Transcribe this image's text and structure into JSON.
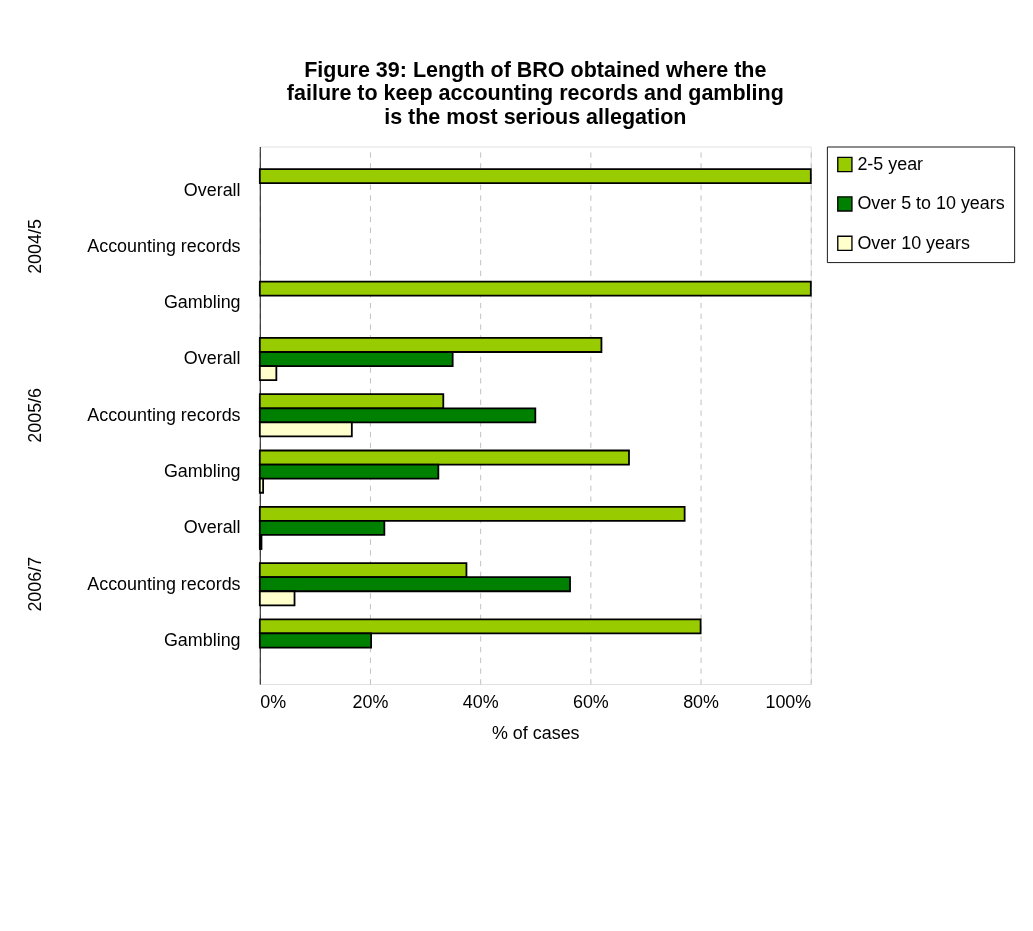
{
  "chart_data": {
    "type": "bar",
    "orientation": "horizontal",
    "title": "Figure 39: Length of BRO obtained where the failure to keep accounting records and gambling is the most serious allegation",
    "xlabel": "% of cases",
    "categories": [
      "Overall",
      "Accounting records",
      "Gambling",
      "Overall",
      "Accounting records",
      "Gambling",
      "Overall",
      "Accounting records",
      "Gambling"
    ],
    "annotations": [
      "2004/5",
      "2005/6",
      "2006/7"
    ],
    "series": [
      {
        "name": "2-5 year",
        "color": "#99cc00",
        "values": [
          100,
          null,
          100,
          62.0,
          33.3,
          67.0,
          77.1,
          37.5,
          80.0
        ]
      },
      {
        "name": "Over 5 to 10 years",
        "color": "#008000",
        "values": [
          null,
          null,
          null,
          35.0,
          50.0,
          32.4,
          22.6,
          56.3,
          20.2
        ]
      },
      {
        "name": "Over 10 years",
        "color": "#ffffcc",
        "values": [
          null,
          null,
          null,
          3.0,
          16.7,
          0.6,
          0.3,
          6.3,
          null
        ]
      }
    ],
    "xlim": [
      0,
      100
    ],
    "xticks": [
      {
        "value": 0,
        "label": "0%"
      },
      {
        "value": 20,
        "label": "20%"
      },
      {
        "value": 40,
        "label": "40%"
      },
      {
        "value": 60,
        "label": "60%"
      },
      {
        "value": 80,
        "label": "80%"
      },
      {
        "value": 100,
        "label": "100%"
      }
    ],
    "grid": "x",
    "legend": "right"
  }
}
